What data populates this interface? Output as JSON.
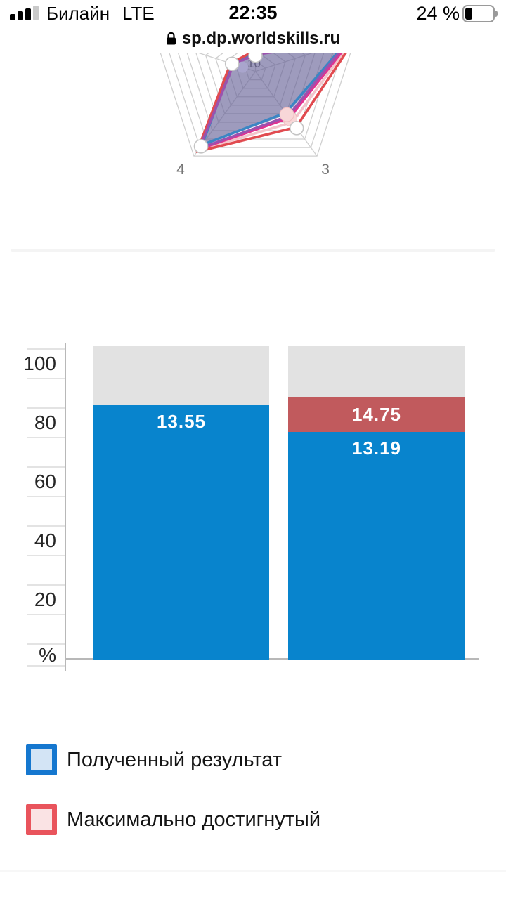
{
  "status_bar": {
    "carrier": "Билайн",
    "network": "LTE",
    "time": "22:35",
    "battery_percent": "24 %",
    "signal_bars_filled": 3,
    "signal_bars_total": 4
  },
  "url_bar": {
    "domain": "sp.dp.worldskills.ru",
    "secure": true
  },
  "chart_data": [
    {
      "type": "radar",
      "note": "pentagon radar, top portion hidden behind browser header",
      "axes_count": 5,
      "axis_labels_visible": [
        {
          "axis": 3,
          "label": "3"
        },
        {
          "axis": 4,
          "label": "4"
        }
      ],
      "rings": 10,
      "ring_step": 10,
      "scale_max": 100,
      "ring_label_visible": "10",
      "grid_color": "#cfcfcf",
      "series": [
        {
          "name": "received-area",
          "kind": "area",
          "color": "rgba(99,93,148,0.62)",
          "values": [
            16,
            94,
            51,
            88,
            23
          ]
        },
        {
          "name": "series-lightpink",
          "kind": "line",
          "color": "#f3c3ca",
          "values": [
            19,
            98,
            60,
            93.5,
            24.5
          ]
        },
        {
          "name": "series-magenta",
          "kind": "line",
          "color": "#e03390",
          "values": [
            18,
            96,
            55,
            92,
            24
          ]
        },
        {
          "name": "series-blue",
          "kind": "line",
          "color": "#3b86c4",
          "values": [
            17,
            92,
            49,
            87,
            23
          ]
        },
        {
          "name": "series-red",
          "kind": "line",
          "color": "#e14b50",
          "values": [
            20,
            100,
            66,
            95,
            25
          ]
        },
        {
          "name": "series-purple",
          "kind": "line",
          "color": "#9b52ae",
          "values": [
            16,
            93,
            53,
            91,
            22
          ]
        }
      ],
      "markers": [
        {
          "axis": 5,
          "value": 13,
          "style": "lavender"
        },
        {
          "axis": 3,
          "value": 56,
          "style": "pink"
        },
        {
          "axis": 3,
          "value": 51,
          "style": "pink"
        },
        {
          "axis": 1,
          "value": 15,
          "style": "white"
        },
        {
          "axis": 5,
          "value": 23.5,
          "style": "white"
        },
        {
          "axis": 4,
          "value": 88.5,
          "style": "white"
        },
        {
          "axis": 3,
          "value": 67,
          "style": "white"
        }
      ]
    },
    {
      "type": "stacked-bar",
      "unit": "%",
      "ylim": [
        0,
        106.1
      ],
      "y_tick_labels": [
        "100",
        "80",
        "60",
        "40",
        "20"
      ],
      "y_tick_values": [
        100,
        80,
        60,
        40,
        20
      ],
      "y_unit_label": "%",
      "colors": {
        "received": "#0884cd",
        "max_achieved": "#c15a5d",
        "remainder": "#e2e2e2"
      },
      "bars": [
        {
          "received_pct": 85.8,
          "received_label": "13.55",
          "max_pct": null,
          "max_label": null
        },
        {
          "received_pct": 76.8,
          "received_label": "13.19",
          "max_pct": 88.6,
          "max_label": "14.75"
        }
      ]
    }
  ],
  "legend": {
    "items": [
      {
        "label": "Полученный результат",
        "border": "#1577cf",
        "fill": "#d3e4f5"
      },
      {
        "label": "Максимально достигнутый",
        "border": "#e9545c",
        "fill": "#fae3e4"
      }
    ]
  }
}
